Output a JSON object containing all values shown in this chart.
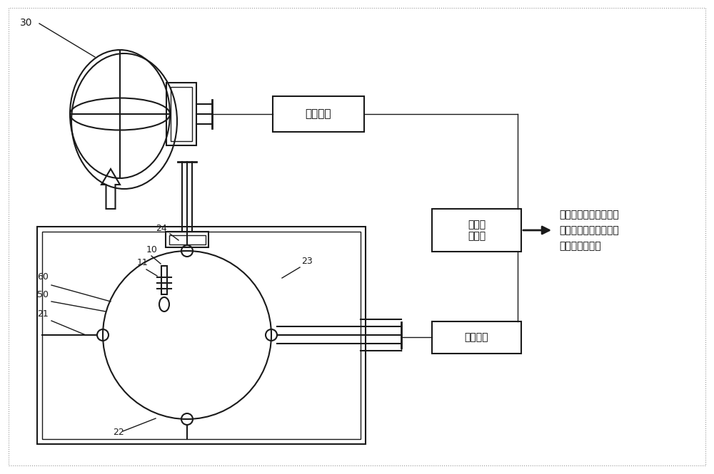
{
  "bg_color": "#ffffff",
  "line_color": "#1a1a1a",
  "box_label_jieshouzhuangzhi": "接收装置",
  "box_label_kongzhizhuangzhi": "控刻处\n理装置",
  "box_label_fashezhuangzhi": "发射装置",
  "text_output_line1": "器械线圈、客体线圈、",
  "text_output_line2": "以及目标组织、器官或",
  "text_output_line3": "病灶的位置信息",
  "label_30": "30",
  "label_24": "24",
  "label_23": "23",
  "label_22": "22",
  "label_21": "21",
  "label_60": "60",
  "label_50": "50",
  "label_10": "10",
  "label_11": "11"
}
